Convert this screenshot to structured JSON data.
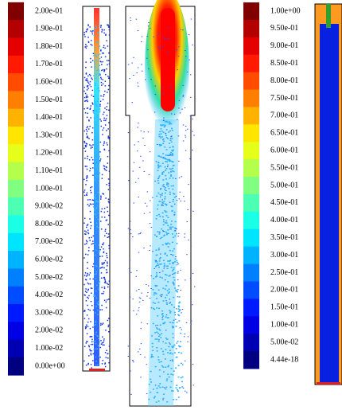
{
  "legend_left": {
    "labels": [
      "2.00e-01",
      "1.90e-01",
      "1.80e-01",
      "1.70e-01",
      "1.60e-01",
      "1.50e-01",
      "1.40e-01",
      "1.30e-01",
      "1.20e-01",
      "1.10e-01",
      "1.00e-01",
      "9.00e-02",
      "8.00e-02",
      "7.00e-02",
      "6.00e-02",
      "5.00e-02",
      "4.00e-02",
      "3.00e-02",
      "2.00e-02",
      "1.00e-02",
      "0.00e+00"
    ]
  },
  "legend_right": {
    "labels": [
      "1.00e+00",
      "9.50e-01",
      "9.00e-01",
      "8.50e-01",
      "8.00e-01",
      "7.50e-01",
      "7.00e-01",
      "6.50e-01",
      "6.00e-01",
      "5.50e-01",
      "5.00e-01",
      "4.50e-01",
      "4.00e-01",
      "3.50e-01",
      "3.00e-01",
      "2.50e-01",
      "2.00e-01",
      "1.50e-01",
      "1.00e-01",
      "5.00e-02",
      "4.44e-18"
    ]
  }
}
